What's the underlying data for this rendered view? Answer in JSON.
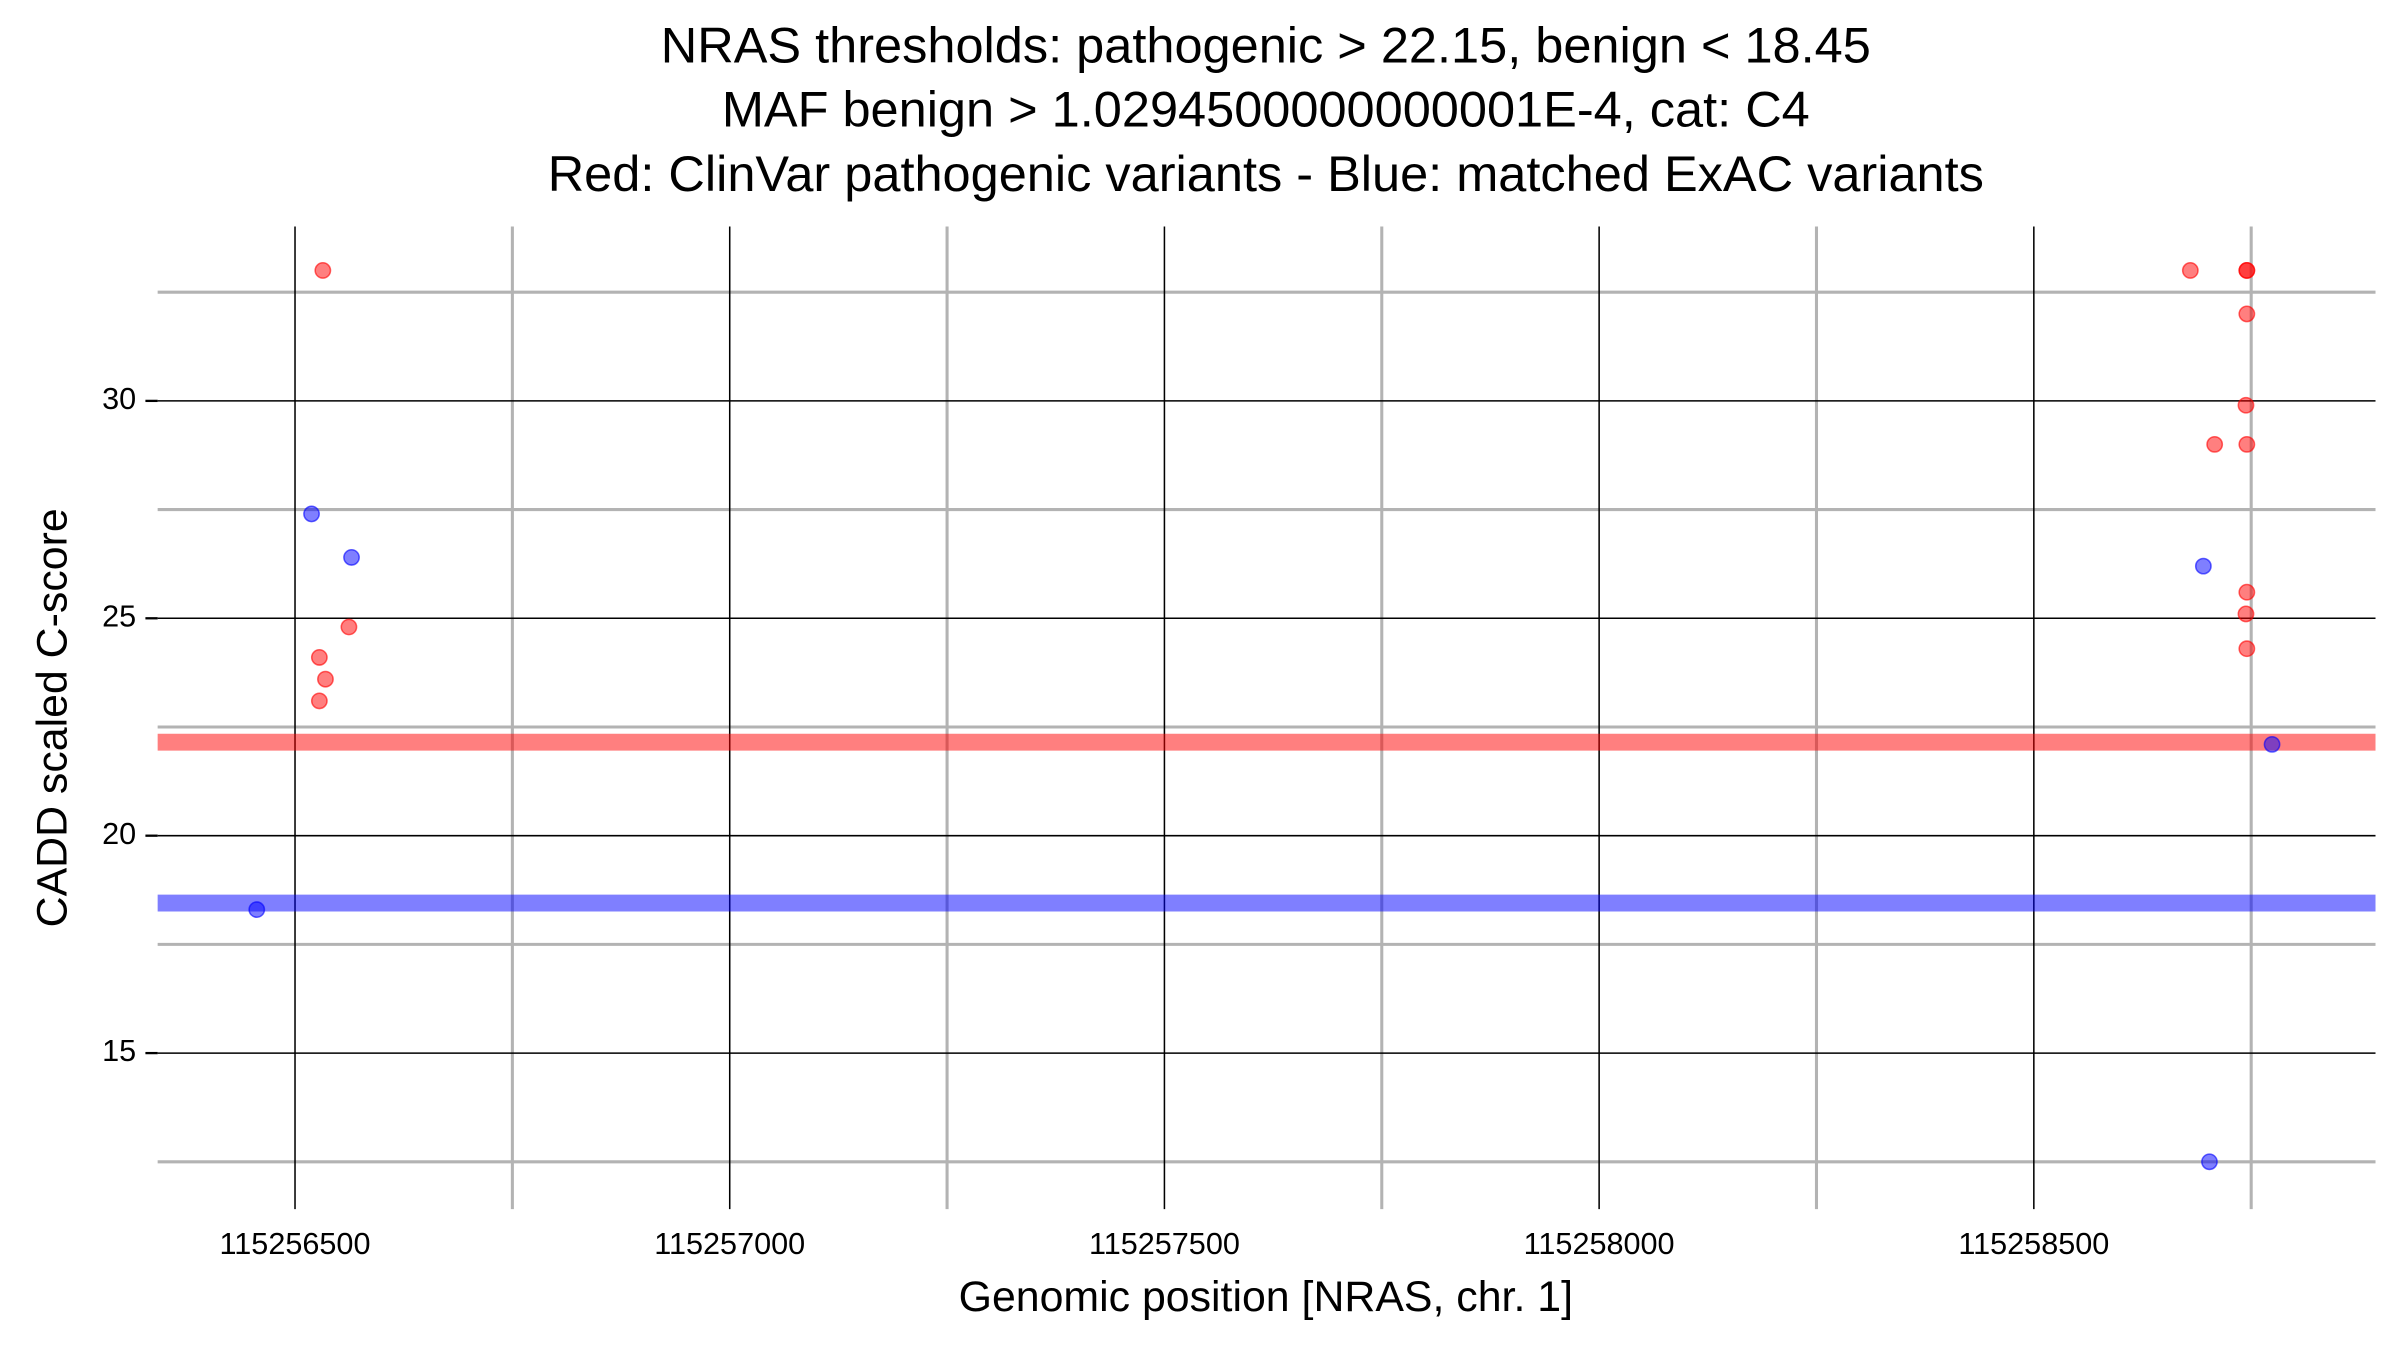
{
  "chart_data": {
    "type": "scatter",
    "title": [
      "NRAS thresholds: pathogenic > 22.15, benign < 18.45",
      "MAF benign > 1.0294500000000001E-4, cat: C4",
      "Red: ClinVar pathogenic variants - Blue: matched ExAC variants"
    ],
    "x_label": "Genomic position [NRAS, chr. 1]",
    "y_label": "CADD scaled C-score",
    "xlim": [
      115256342,
      115258893
    ],
    "ylim": [
      11.41,
      34.01
    ],
    "xticks": [
      115256500,
      115257000,
      115257500,
      115258000,
      115258500
    ],
    "yticks": [
      15,
      20,
      25,
      30
    ],
    "x_minor_grid": [
      115256750,
      115257250,
      115257750,
      115258250,
      115258750
    ],
    "y_minor_grid": [
      12.5,
      17.5,
      22.5,
      27.5,
      32.5
    ],
    "grid": true,
    "hlines": [
      {
        "value": 22.15,
        "color": "#ff0000"
      },
      {
        "value": 18.45,
        "color": "#0000ff"
      }
    ],
    "series": [
      {
        "color": "#ff0000",
        "x": [
          115256532,
          115258680,
          115258745,
          115258745,
          115258745,
          115258744,
          115258708,
          115258745,
          115258745,
          115258744,
          115258745,
          115256562,
          115256528,
          115256535,
          115256528
        ],
        "values": [
          33,
          33,
          33,
          33,
          32,
          29.9,
          29,
          29,
          25.6,
          25.1,
          24.3,
          24.8,
          24.1,
          23.6,
          23.1
        ]
      },
      {
        "color": "#0000ff",
        "x": [
          115256519,
          115256565,
          115256456,
          115258695,
          115258774,
          115258702
        ],
        "values": [
          27.4,
          26.4,
          18.3,
          26.2,
          22.1,
          12.5
        ]
      }
    ]
  }
}
